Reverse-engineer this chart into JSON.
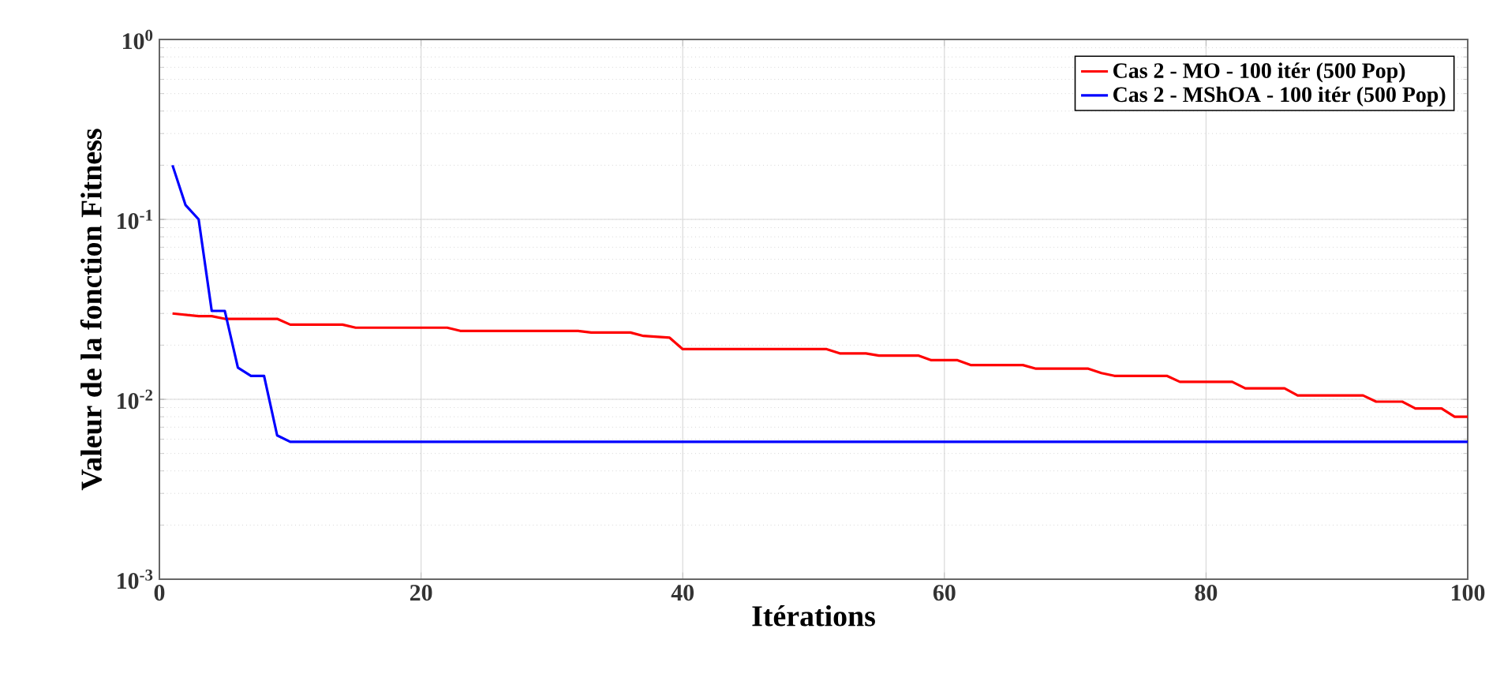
{
  "chart_data": {
    "type": "line",
    "xlabel": "Itérations",
    "ylabel": "Valeur de la fonction Fitness",
    "log": "y",
    "grid": true,
    "legend": "top right",
    "marker": "none",
    "line_style": "solid",
    "xlim": [
      0,
      100
    ],
    "xticks": [
      0,
      20,
      40,
      60,
      80,
      100
    ],
    "ylim": [
      0.001,
      1
    ],
    "yticks": [
      {
        "value": 0.001,
        "label": "10$^{-3}$"
      },
      {
        "value": 0.01,
        "label": "10$^{-2}$"
      },
      {
        "value": 0.1,
        "label": "10$^{-1}$"
      },
      {
        "value": 1,
        "label": "10$^{0}$"
      }
    ],
    "series": [
      {
        "name": "Cas 2 - MO - 100 itér (500 Pop)",
        "color": "#ff0000",
        "x": [
          1,
          3,
          4,
          5,
          9,
          10,
          14,
          15,
          22,
          23,
          32,
          33,
          36,
          37,
          39,
          40,
          51,
          52,
          54,
          55,
          58,
          59,
          61,
          62,
          66,
          67,
          71,
          72,
          73,
          77,
          78,
          82,
          83,
          86,
          87,
          92,
          93,
          95,
          96,
          98,
          99,
          100
        ],
        "values": [
          0.03,
          0.029,
          0.029,
          0.028,
          0.028,
          0.026,
          0.026,
          0.025,
          0.025,
          0.024,
          0.024,
          0.0235,
          0.0235,
          0.0225,
          0.022,
          0.019,
          0.019,
          0.018,
          0.018,
          0.0175,
          0.0175,
          0.0165,
          0.0165,
          0.0155,
          0.0155,
          0.0148,
          0.0148,
          0.014,
          0.0135,
          0.0135,
          0.0125,
          0.0125,
          0.0115,
          0.0115,
          0.0105,
          0.0105,
          0.0097,
          0.0097,
          0.0089,
          0.0089,
          0.008,
          0.008
        ]
      },
      {
        "name": "Cas 2 - MShOA - 100 itér (500 Pop)",
        "color": "#0000ff",
        "x": [
          1,
          2,
          3,
          4,
          5,
          6,
          7,
          8,
          9,
          10,
          100
        ],
        "values": [
          0.2,
          0.12,
          0.1,
          0.031,
          0.031,
          0.015,
          0.0135,
          0.0135,
          0.0063,
          0.0058,
          0.0058
        ]
      }
    ]
  }
}
